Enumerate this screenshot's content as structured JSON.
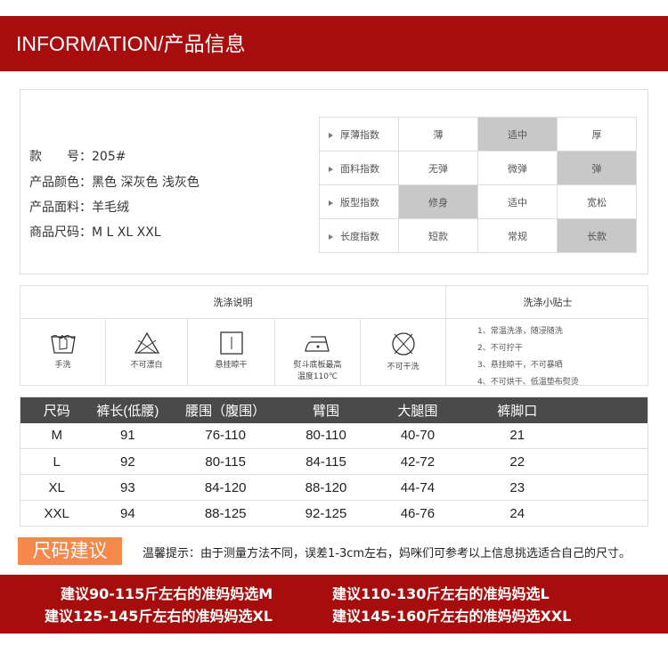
{
  "header": {
    "title": "INFORMATION/产品信息"
  },
  "info": {
    "lines": [
      "款　　号：205#",
      "产品颜色：黑色  深灰色  浅灰色",
      "产品面料：羊毛绒",
      "商品尺码：M  L  XL  XXL"
    ],
    "index": [
      {
        "label": "厚薄指数",
        "options": [
          "薄",
          "适中",
          "厚"
        ],
        "selected": 1
      },
      {
        "label": "面料指数",
        "options": [
          "无弹",
          "微弹",
          "弹"
        ],
        "selected": 2
      },
      {
        "label": "版型指数",
        "options": [
          "修身",
          "适中",
          "宽松"
        ],
        "selected": 0
      },
      {
        "label": "长度指数",
        "options": [
          "短款",
          "常规",
          "长款"
        ],
        "selected": 2
      }
    ]
  },
  "wash": {
    "title": "洗涤说明",
    "tips_title": "洗涤小贴士",
    "items": [
      {
        "icon": "hand-wash-icon",
        "label": "手洗"
      },
      {
        "icon": "no-bleach-icon",
        "label": "不可漂白"
      },
      {
        "icon": "hang-dry-icon",
        "label": "悬挂晾干"
      },
      {
        "icon": "iron-icon",
        "label": "熨斗底板最高",
        "label2": "温度110℃"
      },
      {
        "icon": "no-dry-clean-icon",
        "label": "不可干洗"
      }
    ],
    "tips": [
      "1、常温洗涤，随浸随洗",
      "2、不可拧干",
      "3、悬挂晾干，不可暴晒",
      "4、不可烘干、低温垫布熨烫"
    ]
  },
  "size_table": {
    "headers": [
      "尺码",
      "裤长(低腰)",
      "腰围（腹围）",
      "臂围",
      "大腿围",
      "裤脚口",
      ""
    ],
    "rows": [
      [
        "M",
        "91",
        "76-110",
        "80-110",
        "40-70",
        "21"
      ],
      [
        "L",
        "92",
        "80-115",
        "84-115",
        "42-72",
        "22"
      ],
      [
        "XL",
        "93",
        "84-120",
        "88-120",
        "44-74",
        "23"
      ],
      [
        "XXL",
        "94",
        "88-125",
        "92-125",
        "46-76",
        "24"
      ]
    ]
  },
  "recommend": {
    "label": "尺码建议",
    "note": "温馨提示：由于测量方法不同，误差1-3cm左右，妈咪们可参考以上信息挑选适合自己的尺寸。"
  },
  "banner": {
    "lines": [
      "建议90-115斤左右的准妈妈选M",
      "建议110-130斤左右的准妈妈选L",
      "建议125-145斤左右的准妈妈选XL",
      "建议145-160斤左右的准妈妈选XXL"
    ]
  },
  "colors": {
    "brand_red": "#a70d0d",
    "accent_orange": "#f5884a",
    "table_header": "#4a4a4a",
    "selected": "#c8c8c8"
  }
}
